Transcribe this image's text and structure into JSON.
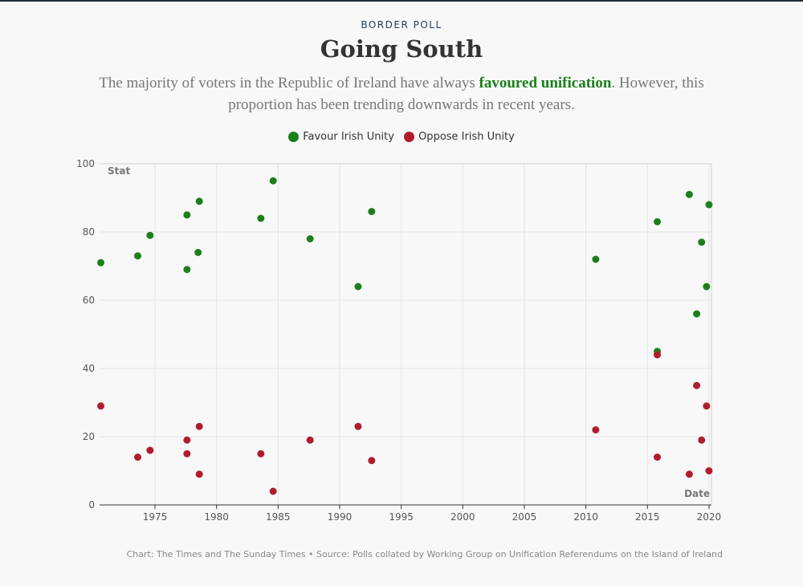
{
  "header": {
    "kicker": "BORDER POLL",
    "title": "Going South",
    "subtitle_pre": "The majority of voters in the Republic of Ireland have always ",
    "subtitle_highlight": "favoured unification",
    "subtitle_post": ". However, this proportion has been trending downwards in recent years."
  },
  "legend": {
    "favour": "Favour Irish Unity",
    "oppose": "Oppose Irish Unity"
  },
  "colors": {
    "favour": "#1b7f1b",
    "oppose": "#b01c2e",
    "grid": "#e3e3e3",
    "axis": "#333333"
  },
  "source": "Chart: The Times and The Sunday Times • Source: Polls collated by Working Group on Unification Referendums on the Island of Ireland",
  "chart_data": {
    "type": "scatter",
    "xlabel": "Date",
    "ylabel": "Stat",
    "xlim": [
      1970.5,
      2020.2
    ],
    "ylim": [
      0,
      100
    ],
    "x_ticks": [
      1975,
      1980,
      1985,
      1990,
      1995,
      2000,
      2005,
      2010,
      2015,
      2020
    ],
    "y_ticks": [
      0,
      20,
      40,
      60,
      80,
      100
    ],
    "grid": true,
    "legend_position": "top-center",
    "series": [
      {
        "name": "Favour Irish Unity",
        "points": [
          {
            "x": 1970.6,
            "y": 71
          },
          {
            "x": 1973.6,
            "y": 73
          },
          {
            "x": 1974.6,
            "y": 79
          },
          {
            "x": 1977.6,
            "y": 85
          },
          {
            "x": 1977.6,
            "y": 69
          },
          {
            "x": 1978.6,
            "y": 89
          },
          {
            "x": 1978.5,
            "y": 74
          },
          {
            "x": 1983.6,
            "y": 84
          },
          {
            "x": 1984.6,
            "y": 95
          },
          {
            "x": 1987.6,
            "y": 78
          },
          {
            "x": 1991.5,
            "y": 64
          },
          {
            "x": 1992.6,
            "y": 86
          },
          {
            "x": 2010.8,
            "y": 72
          },
          {
            "x": 2015.8,
            "y": 83
          },
          {
            "x": 2015.8,
            "y": 45
          },
          {
            "x": 2018.4,
            "y": 91
          },
          {
            "x": 2019.0,
            "y": 56
          },
          {
            "x": 2019.4,
            "y": 77
          },
          {
            "x": 2019.8,
            "y": 64
          },
          {
            "x": 2020.0,
            "y": 88
          }
        ]
      },
      {
        "name": "Oppose Irish Unity",
        "points": [
          {
            "x": 1970.6,
            "y": 29
          },
          {
            "x": 1973.6,
            "y": 14
          },
          {
            "x": 1974.6,
            "y": 16
          },
          {
            "x": 1977.6,
            "y": 19
          },
          {
            "x": 1977.6,
            "y": 15
          },
          {
            "x": 1978.6,
            "y": 23
          },
          {
            "x": 1978.6,
            "y": 9
          },
          {
            "x": 1983.6,
            "y": 15
          },
          {
            "x": 1984.6,
            "y": 4
          },
          {
            "x": 1987.6,
            "y": 19
          },
          {
            "x": 1991.5,
            "y": 23
          },
          {
            "x": 1992.6,
            "y": 13
          },
          {
            "x": 2010.8,
            "y": 22
          },
          {
            "x": 2015.8,
            "y": 44
          },
          {
            "x": 2015.8,
            "y": 14
          },
          {
            "x": 2018.4,
            "y": 9
          },
          {
            "x": 2019.0,
            "y": 35
          },
          {
            "x": 2019.4,
            "y": 19
          },
          {
            "x": 2019.8,
            "y": 29
          },
          {
            "x": 2020.0,
            "y": 10
          }
        ]
      }
    ]
  }
}
